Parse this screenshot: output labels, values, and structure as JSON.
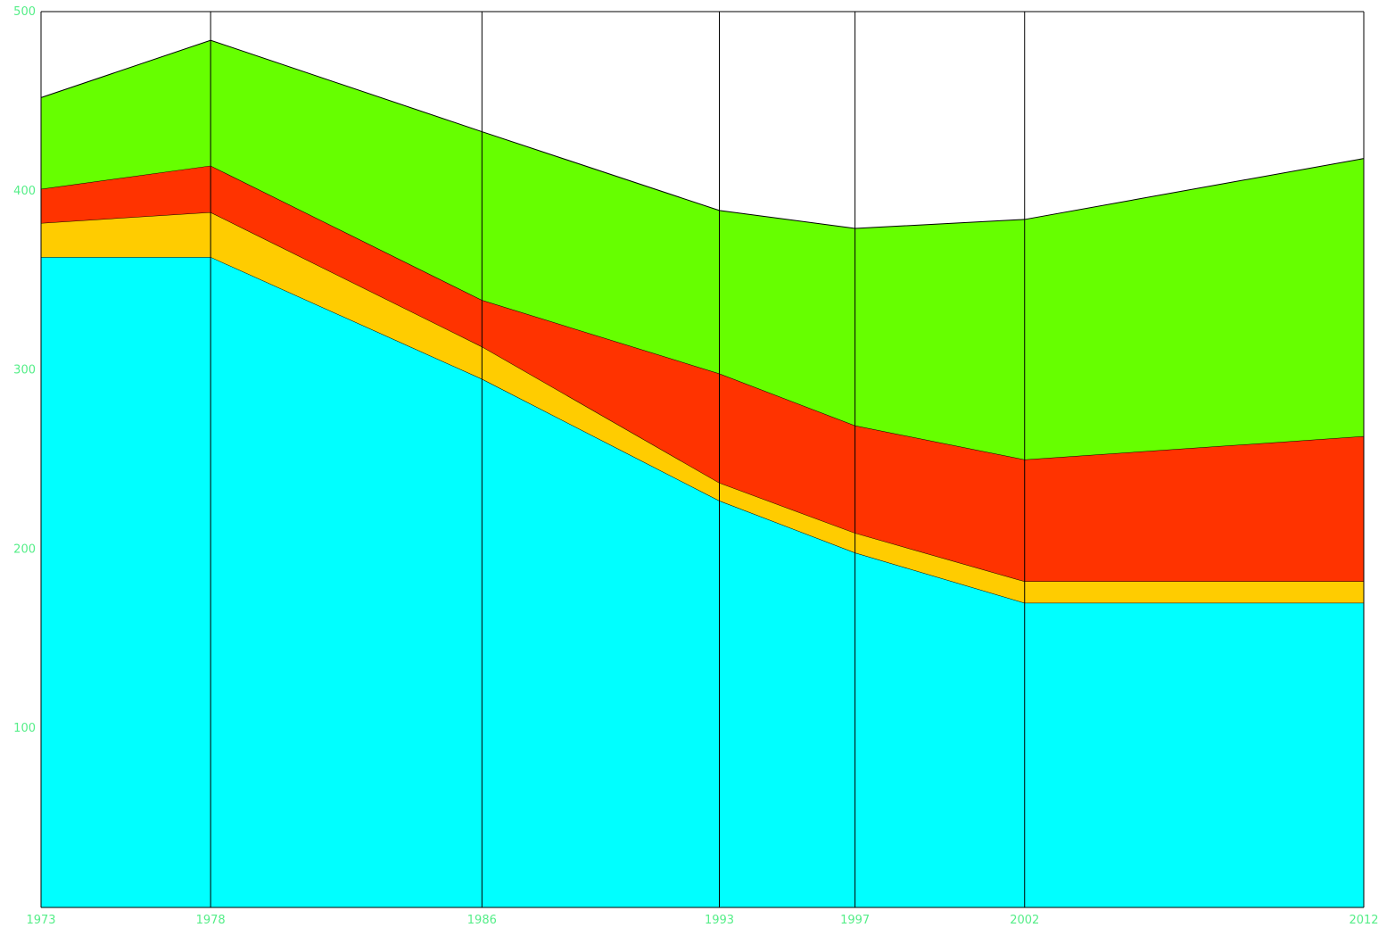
{
  "chart_data": {
    "type": "area",
    "stacked": true,
    "x": [
      1973,
      1978,
      1986,
      1993,
      1997,
      2002,
      2012
    ],
    "x_tick_labels": [
      "1973",
      "1978",
      "1986",
      "1993",
      "1997",
      "2002",
      "2012"
    ],
    "y_tick_values": [
      100,
      200,
      300,
      400,
      500
    ],
    "y_tick_labels": [
      "100",
      "200",
      "300",
      "400",
      "500"
    ],
    "ylim": [
      0,
      500
    ],
    "grid": "vertical lines at each data year",
    "legend": "none",
    "title": "",
    "xlabel": "",
    "ylabel": "",
    "tick_label_color": "#55ee88",
    "series": [
      {
        "color": "#00ffff",
        "values": [
          363,
          363,
          295,
          227,
          198,
          170,
          170
        ]
      },
      {
        "color": "#ffcc00",
        "values": [
          19,
          25,
          18,
          10,
          11,
          12,
          12
        ]
      },
      {
        "color": "#ff3300",
        "values": [
          19,
          26,
          26,
          61,
          60,
          68,
          81
        ]
      },
      {
        "color": "#66ff00",
        "values": [
          51,
          70,
          94,
          91,
          110,
          134,
          155
        ]
      }
    ]
  }
}
